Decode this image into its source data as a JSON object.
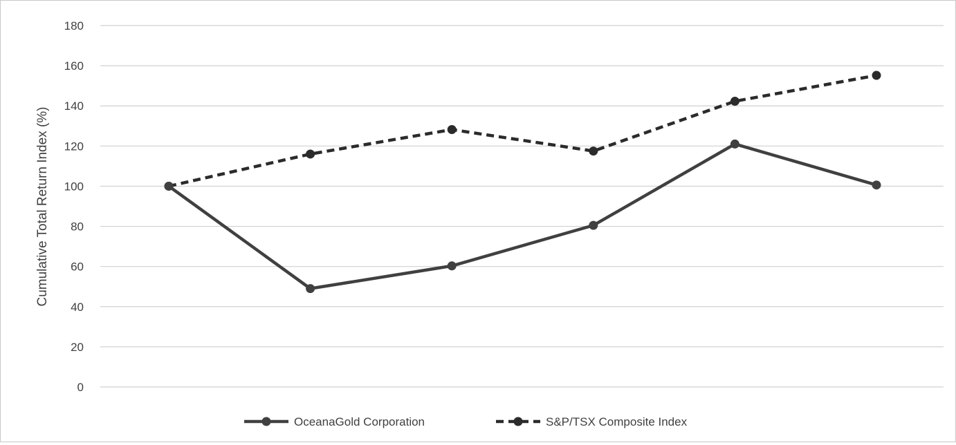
{
  "chart_data": {
    "type": "line",
    "title": "",
    "xlabel": "",
    "ylabel": "Cumulative Total Return Index (%)",
    "ylim": [
      0,
      180
    ],
    "yticks": [
      0,
      20,
      40,
      60,
      80,
      100,
      120,
      140,
      160,
      180
    ],
    "grid": true,
    "legend_position": "bottom",
    "x": [
      1,
      2,
      3,
      4,
      5,
      6
    ],
    "series": [
      {
        "name": "OceanaGold Corporation",
        "values": [
          100,
          49,
          60.3,
          80.5,
          121,
          100.6
        ],
        "color": "#404040",
        "style": "solid"
      },
      {
        "name": "S&P/TSX Composite Index",
        "values": [
          100,
          116,
          128.2,
          117.5,
          142.3,
          155.2
        ],
        "color": "#2b2b2b",
        "style": "dashed"
      }
    ]
  }
}
